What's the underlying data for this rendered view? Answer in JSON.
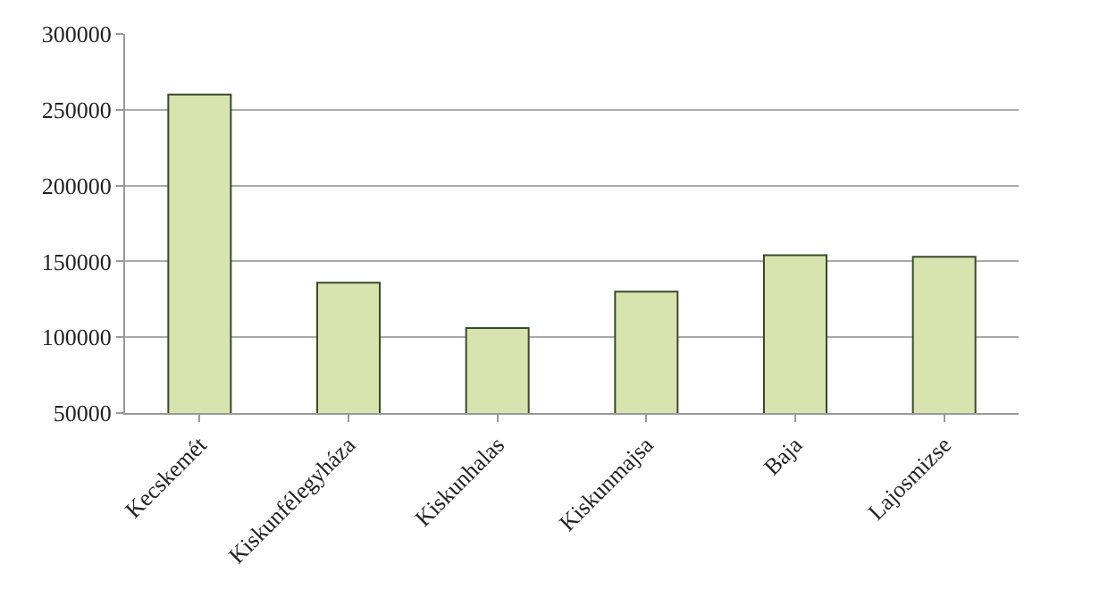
{
  "chart_data": {
    "type": "bar",
    "categories": [
      "Kecskemét",
      "Kiskunfélegyháza",
      "Kiskunhalas",
      "Kiskunmajsa",
      "Baja",
      "Lajosmizse"
    ],
    "values": [
      260000,
      136000,
      106000,
      130000,
      154000,
      153000
    ],
    "color": "#d7e4b0",
    "ylim": [
      50000,
      300000
    ],
    "yticks": [
      50000,
      100000,
      150000,
      200000,
      250000,
      300000
    ],
    "grid": "y"
  }
}
